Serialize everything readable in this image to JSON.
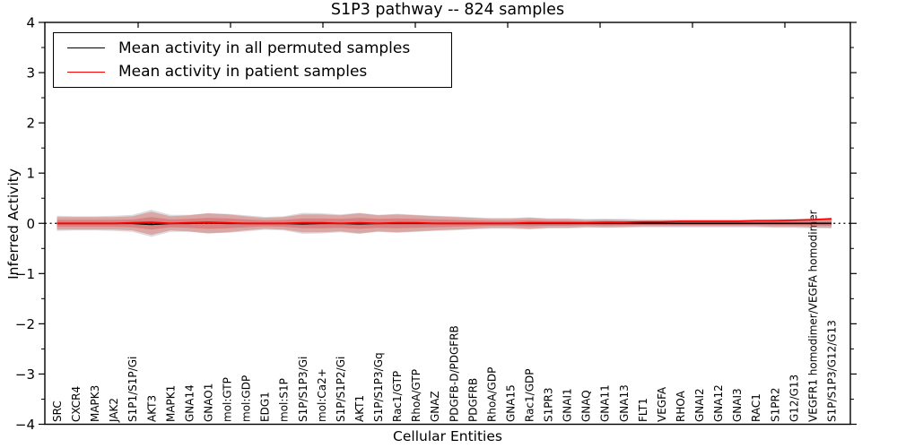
{
  "title": "S1P3 pathway -- 824 samples",
  "xlabel": "Cellular Entities",
  "ylabel": "Inferred Activity",
  "legend": {
    "items": [
      {
        "label": "Mean activity in all permuted samples",
        "color": "#000000"
      },
      {
        "label": "Mean activity in patient samples",
        "color": "#ff0000"
      }
    ]
  },
  "chart_data": {
    "type": "line",
    "title": "S1P3 pathway -- 824 samples",
    "xlabel": "Cellular Entities",
    "ylabel": "Inferred Activity",
    "ylim": [
      -4,
      4
    ],
    "y_major_ticks": [
      -4,
      -3,
      -2,
      -1,
      0,
      1,
      2,
      3,
      4
    ],
    "y_minor_step": 0.5,
    "zero_line": true,
    "legend_position": "upper left",
    "grid": false,
    "categories": [
      "SRC",
      "CXCR4",
      "MAPK3",
      "JAK2",
      "S1P1/S1P/Gi",
      "AKT3",
      "MAPK1",
      "GNA14",
      "GNAO1",
      "mol:GTP",
      "mol:GDP",
      "EDG1",
      "mol:S1P",
      "S1P/S1P3/Gi",
      "mol:Ca2+",
      "S1P/S1P2/Gi",
      "AKT1",
      "S1P/S1P3/Gq",
      "Rac1/GTP",
      "RhoA/GTP",
      "GNAZ",
      "PDGFB-D/PDGFRB",
      "PDGFRB",
      "RhoA/GDP",
      "GNA15",
      "Rac1/GDP",
      "S1PR3",
      "GNAI1",
      "GNAQ",
      "GNA11",
      "GNA13",
      "FLT1",
      "VEGFA",
      "RHOA",
      "GNAI2",
      "GNA12",
      "GNAI3",
      "RAC1",
      "S1PR2",
      "G12/G13",
      "VEGFR1 homodimer/VEGFA homodimer",
      "S1P/S1P3/G12/G13"
    ],
    "series": [
      {
        "name": "Mean activity in all permuted samples",
        "color": "#000000",
        "values": [
          0,
          0,
          0,
          0,
          0,
          -0.02,
          0,
          0,
          0.01,
          0,
          0,
          0,
          0,
          -0.01,
          0,
          0,
          -0.01,
          0,
          0,
          0,
          0,
          0,
          0,
          0,
          0,
          0,
          0,
          0,
          0,
          0,
          0,
          0,
          0,
          0,
          0,
          0,
          0,
          0,
          0,
          0,
          0,
          0
        ]
      },
      {
        "name": "Mean activity in patient samples",
        "color": "#ff0000",
        "values": [
          0,
          0,
          0,
          0,
          0.01,
          0.02,
          0,
          0.01,
          0.02,
          0.01,
          0,
          0,
          0,
          0.01,
          0.01,
          0,
          0.01,
          0,
          0.01,
          0.01,
          0,
          0,
          0,
          0,
          0,
          0.01,
          0.01,
          0.01,
          0.01,
          0.02,
          0.02,
          0.03,
          0.03,
          0.04,
          0.04,
          0.04,
          0.04,
          0.05,
          0.05,
          0.06,
          0.07,
          0.09
        ]
      }
    ],
    "bands": [
      {
        "name": "permuted-samples-spread",
        "color": "rgba(130,130,130,0.28)",
        "half_widths": [
          0.15,
          0.14,
          0.14,
          0.15,
          0.17,
          0.27,
          0.17,
          0.17,
          0.2,
          0.19,
          0.16,
          0.13,
          0.14,
          0.21,
          0.2,
          0.18,
          0.21,
          0.17,
          0.19,
          0.17,
          0.15,
          0.14,
          0.12,
          0.11,
          0.11,
          0.12,
          0.1,
          0.1,
          0.09,
          0.09,
          0.09,
          0.08,
          0.08,
          0.08,
          0.08,
          0.08,
          0.08,
          0.08,
          0.09,
          0.09,
          0.1,
          0.1
        ]
      },
      {
        "name": "patient-samples-spread",
        "color": "rgba(215,45,45,0.30)",
        "inner_scale": 0.55,
        "half_widths": [
          0.125,
          0.125,
          0.125,
          0.125,
          0.14,
          0.23,
          0.14,
          0.16,
          0.2,
          0.18,
          0.14,
          0.11,
          0.125,
          0.18,
          0.18,
          0.16,
          0.2,
          0.16,
          0.18,
          0.16,
          0.14,
          0.125,
          0.11,
          0.09,
          0.09,
          0.11,
          0.09,
          0.09,
          0.07,
          0.08,
          0.07,
          0.06,
          0.06,
          0.06,
          0.06,
          0.06,
          0.06,
          0.06,
          0.07,
          0.07,
          0.08,
          0.09
        ]
      }
    ]
  }
}
